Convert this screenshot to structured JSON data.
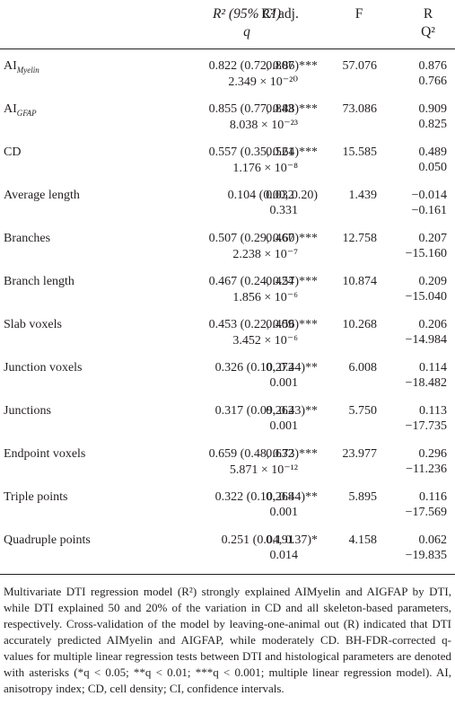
{
  "header": {
    "r2": "R² (95% CI)",
    "q": "q",
    "r2adj": "R² adj.",
    "f": "F",
    "r": "R",
    "q2": "Q²"
  },
  "rows": [
    {
      "label": "AI",
      "label_sub": "Myelin",
      "r2": "0.822 (0.72, 0.86)***",
      "q": "2.349 × 10⁻²⁰",
      "r2adj": "0.807",
      "f": "57.076",
      "r": "0.876",
      "q2": "0.766"
    },
    {
      "label": "AI",
      "label_sub": "GFAP",
      "r2": "0.855 (0.77, 0.88)***",
      "q": "8.038 × 10⁻²³",
      "r2adj": "0.843",
      "f": "73.086",
      "r": "0.909",
      "q2": "0.825"
    },
    {
      "label": "CD",
      "label_sub": "",
      "r2": "0.557 (0.35, 0.64)***",
      "q": "1.176 × 10⁻⁸",
      "r2adj": "0.521",
      "f": "15.585",
      "r": "0.489",
      "q2": "0.050"
    },
    {
      "label": "Average length",
      "label_sub": "",
      "r2": "0.104 (0.00, 0.20)",
      "q": "0.331",
      "r2adj": "0.032",
      "f": "1.439",
      "r": "−0.014",
      "q2": "−0.161"
    },
    {
      "label": "Branches",
      "label_sub": "",
      "r2": "0.507 (0.29, 0.60)***",
      "q": "2.238 × 10⁻⁷",
      "r2adj": "0.467",
      "f": "12.758",
      "r": "0.207",
      "q2": "−15.160"
    },
    {
      "label": "Branch length",
      "label_sub": "",
      "r2": "0.467 (0.24, 0.57)***",
      "q": "1.856 × 10⁻⁶",
      "r2adj": "0.424",
      "f": "10.874",
      "r": "0.209",
      "q2": "−15.040"
    },
    {
      "label": "Slab voxels",
      "label_sub": "",
      "r2": "0.453 (0.22, 0.56)***",
      "q": "3.452 × 10⁻⁶",
      "r2adj": "0.409",
      "f": "10.268",
      "r": "0.206",
      "q2": "−14.984"
    },
    {
      "label": "Junction voxels",
      "label_sub": "",
      "r2": "0.326 (0.10, 0.44)**",
      "q": "0.001",
      "r2adj": "0.272",
      "f": "6.008",
      "r": "0.114",
      "q2": "−18.482"
    },
    {
      "label": "Junctions",
      "label_sub": "",
      "r2": "0.317 (0.09, 0.43)**",
      "q": "0.001",
      "r2adj": "0.262",
      "f": "5.750",
      "r": "0.113",
      "q2": "−17.735"
    },
    {
      "label": "Endpoint voxels",
      "label_sub": "",
      "r2": "0.659 (0.48, 0.73)***",
      "q": "5.871 × 10⁻¹²",
      "r2adj": "0.632",
      "f": "23.977",
      "r": "0.296",
      "q2": "−11.236"
    },
    {
      "label": "Triple points",
      "label_sub": "",
      "r2": "0.322 (0.10, 0.44)**",
      "q": "0.001",
      "r2adj": "0.268",
      "f": "5.895",
      "r": "0.116",
      "q2": "−17.569"
    },
    {
      "label": "Quadruple points",
      "label_sub": "",
      "r2": "0.251 (0.04, 0.37)*",
      "q": "0.014",
      "r2adj": "0.191",
      "f": "4.158",
      "r": "0.062",
      "q2": "−19.835"
    }
  ],
  "caption": "Multivariate DTI regression model (R²) strongly explained AIMyelin and AIGFAP by DTI, while DTI explained 50 and 20% of the variation in CD and all skeleton-based parameters, respectively. Cross-validation of the model by leaving-one-animal out (R) indicated that DTI accurately predicted AIMyelin and AIGFAP, while moderately CD. BH-FDR-corrected q-values for multiple linear regression tests between DTI and histological parameters are denoted with asterisks (*q < 0.05; **q < 0.01; ***q < 0.001; multiple linear regression model). AI, anisotropy index; CD, cell density; CI, confidence intervals."
}
